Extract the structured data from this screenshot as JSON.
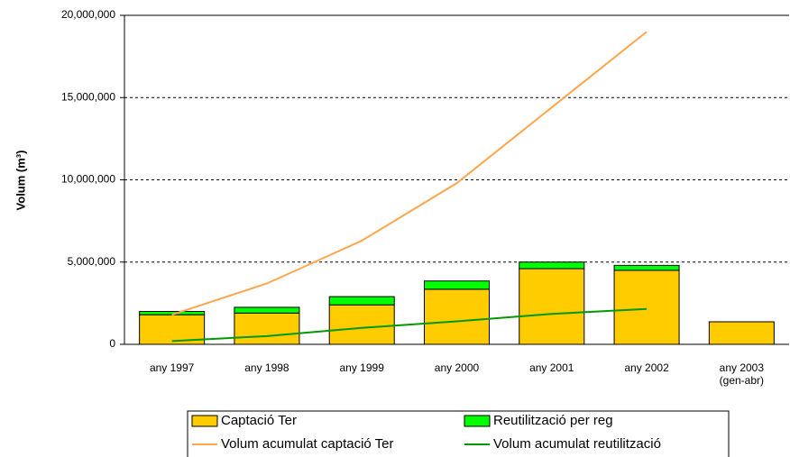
{
  "chart_data": {
    "type": "bar",
    "categories": [
      "any 1997",
      "any 1998",
      "any 1999",
      "any 2000",
      "any 2001",
      "any 2002",
      "any 2003\n(gen-abr)"
    ],
    "y_label": "Volum (m³)",
    "series": [
      {
        "name": "Captació Ter",
        "type": "bar",
        "color": "#ffcc00",
        "values": [
          1800000,
          1900000,
          2400000,
          3350000,
          4600000,
          4500000,
          1370000
        ]
      },
      {
        "name": "Reutilització per reg",
        "type": "bar",
        "color": "#00ff00",
        "values": [
          200000,
          350000,
          500000,
          500000,
          400000,
          300000,
          0
        ]
      },
      {
        "name": "Volum acumulat captació Ter",
        "type": "line",
        "color": "#ffa64d",
        "values": [
          1800000,
          3700000,
          6300000,
          9800000,
          14400000,
          19000000,
          null
        ]
      },
      {
        "name": "Volum acumulat reutilització",
        "type": "line",
        "color": "#009900",
        "values": [
          200000,
          500000,
          1000000,
          1400000,
          1850000,
          2150000,
          null
        ]
      }
    ],
    "ylim": [
      0,
      20000000
    ],
    "yticks": [
      0,
      {
        "value": 5000000,
        "label": "5,000,000"
      },
      {
        "value": 10000000,
        "label": "10,000,000"
      },
      {
        "value": 15000000,
        "label": "15,000,000"
      },
      {
        "value": 20000000,
        "label": "20,000,000"
      }
    ],
    "grid": true,
    "legend": "bottom"
  }
}
